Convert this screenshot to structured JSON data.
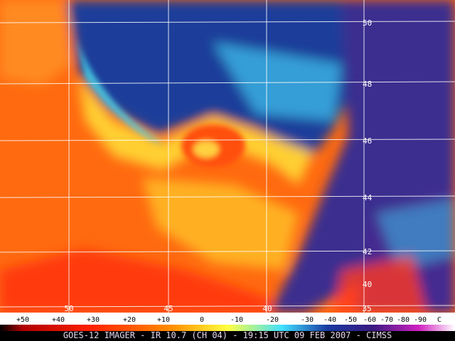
{
  "latitude_labels": [
    "50",
    "48",
    "46",
    "44",
    "42",
    "40"
  ],
  "longitude_labels": [
    "50",
    "45",
    "40",
    "35"
  ],
  "colorbar": {
    "labels": [
      "+50",
      "+40",
      "+30",
      "+20",
      "+10",
      "0",
      "-10",
      "-20",
      "-30",
      "-40",
      "-50",
      "-60",
      "-70",
      "-80",
      "-90",
      "C"
    ]
  },
  "caption": "GOES-12 IMAGER - IR 10.7 (CH 04) - 19:15 UTC 09 FEB 2007 - CIMSS"
}
